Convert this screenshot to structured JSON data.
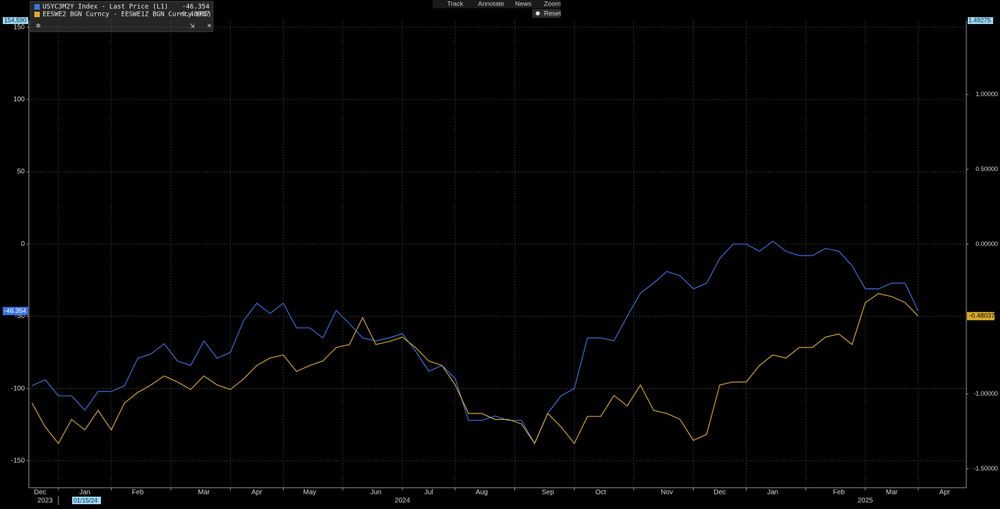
{
  "toolbar": [
    "Track",
    "Annotate",
    "News",
    "Zoom",
    "Reset"
  ],
  "crosshair_label": "01/15/24",
  "chart_data": {
    "type": "line",
    "categories": [
      "Dec",
      null,
      null,
      null,
      "Jan",
      null,
      null,
      null,
      "Feb",
      null,
      null,
      null,
      null,
      "Mar",
      null,
      null,
      null,
      "Apr",
      null,
      null,
      null,
      "May",
      null,
      null,
      null,
      null,
      "Jun",
      null,
      null,
      null,
      "Jul",
      null,
      null,
      null,
      "Aug",
      null,
      null,
      null,
      null,
      "Sep",
      null,
      null,
      null,
      "Oct",
      null,
      null,
      null,
      null,
      "Nov",
      null,
      null,
      null,
      "Dec",
      null,
      null,
      null,
      "Jan",
      null,
      null,
      null,
      null,
      "Feb",
      null,
      null,
      null,
      "Mar",
      null,
      null,
      null,
      "Apr"
    ],
    "x_years": [
      "2023",
      null,
      null,
      null,
      null,
      null,
      null,
      null,
      null,
      null,
      null,
      null,
      null,
      null,
      null,
      null,
      null,
      null,
      null,
      null,
      null,
      null,
      null,
      null,
      null,
      null,
      null,
      null,
      "2024",
      null,
      null,
      null,
      null,
      null,
      null,
      null,
      null,
      null,
      null,
      null,
      null,
      null,
      null,
      null,
      null,
      null,
      null,
      null,
      null,
      null,
      null,
      null,
      null,
      null,
      null,
      null,
      null,
      null,
      null,
      null,
      null,
      null,
      null,
      "2025",
      null,
      null,
      null,
      null,
      null,
      null
    ],
    "series": [
      {
        "name": "USYC3M2Y Index - Last Price (L1)",
        "color": "#3b73e6",
        "axis": "y",
        "values": [
          -98,
          -94,
          -105,
          -105,
          -115,
          -102,
          -102,
          -98,
          -79,
          -76,
          -69,
          -81,
          -84,
          -67,
          -79,
          -75,
          -53,
          -41,
          -48,
          -41,
          -58,
          -58,
          -65,
          -46,
          -55,
          -65,
          -67,
          -65,
          -62,
          -74,
          -88,
          -84,
          -93,
          -122,
          -122,
          -119,
          -122,
          -122,
          -138,
          -117,
          -105,
          -100,
          -65,
          -65,
          -67,
          -50,
          -34,
          -27,
          -19,
          -22,
          -31,
          -27,
          -10,
          0,
          0,
          -5,
          2,
          -5,
          -8,
          -8,
          -3,
          -5,
          -15,
          -31,
          -31,
          -27,
          -27,
          -46.354,
          null,
          null
        ]
      },
      {
        "name": "EESWE2 BGN Curncy - EESWE1Z BGN Curncy (R1)",
        "color": "#dcaa2a",
        "axis": "y2",
        "values": [
          -1.06,
          -1.22,
          -1.33,
          -1.17,
          -1.24,
          -1.11,
          -1.24,
          -1.06,
          -0.99,
          -0.94,
          -0.88,
          -0.92,
          -0.97,
          -0.88,
          -0.94,
          -0.97,
          -0.9,
          -0.81,
          -0.76,
          -0.74,
          -0.85,
          -0.81,
          -0.78,
          -0.69,
          -0.67,
          -0.49,
          -0.67,
          -0.65,
          -0.62,
          -0.69,
          -0.78,
          -0.81,
          -0.94,
          -1.13,
          -1.13,
          -1.17,
          -1.17,
          -1.2,
          -1.33,
          -1.13,
          -1.22,
          -1.33,
          -1.15,
          -1.15,
          -1.01,
          -1.08,
          -0.94,
          -1.11,
          -1.13,
          -1.17,
          -1.31,
          -1.27,
          -0.94,
          -0.92,
          -0.92,
          -0.81,
          -0.74,
          -0.76,
          -0.69,
          -0.69,
          -0.62,
          -0.6,
          -0.67,
          -0.39,
          -0.33,
          -0.35,
          -0.39,
          -0.48037,
          null,
          null
        ]
      }
    ],
    "ylim": [
      -168.6,
      154.59
    ],
    "yticks": [
      {
        "value": 154.59,
        "label": "154.590"
      },
      150,
      100,
      50,
      0,
      -50,
      -100,
      -150
    ],
    "y2lim": [
      -1.626,
      1.49275
    ],
    "y2ticks": [
      1.49275,
      {
        "value": 1,
        "label": "1.00000"
      },
      {
        "value": 0.5,
        "label": "0.50000"
      },
      {
        "value": 0,
        "label": "0.00000"
      },
      {
        "value": -1,
        "label": "-1.00000"
      },
      {
        "value": -1.5,
        "label": "-1.50000"
      }
    ],
    "grid": true
  }
}
